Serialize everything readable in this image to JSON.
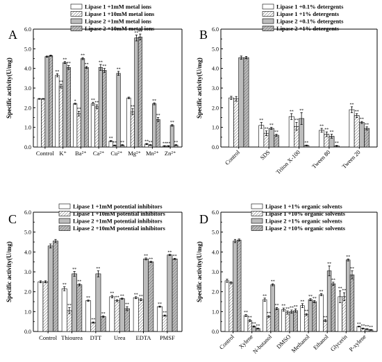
{
  "figure": {
    "panels": [
      "A",
      "B",
      "C",
      "D"
    ]
  },
  "chart_data": [
    {
      "panel": "A",
      "type": "bar",
      "ylabel": "Specific activity(U/mg)",
      "ylim": [
        0,
        6.0
      ],
      "yticks": [
        "0.0",
        "1.0",
        "2.0",
        "3.0",
        "4.0",
        "5.0",
        "6.0"
      ],
      "categories": [
        "Control",
        "K⁺",
        "Ba²⁺",
        "Ca²⁺",
        "Cu²⁺",
        "Mg²⁺",
        "Mn²⁺",
        "Zn²⁺"
      ],
      "legend_position": "top-right",
      "series": [
        {
          "name": "Lipase 1 +1mM metal ions",
          "style": "white",
          "values": [
            2.45,
            3.65,
            2.2,
            2.2,
            0.3,
            2.5,
            0.15,
            0.05
          ],
          "errors": [
            0.02,
            0.08,
            0.03,
            0.08,
            0.03,
            0.04,
            0.03,
            0.02
          ],
          "stars": [
            "",
            "**",
            "*",
            "**",
            "**",
            "",
            "**",
            "**"
          ]
        },
        {
          "name": "Lipase 1 +10mM metal ions",
          "style": "hatch",
          "values": [
            2.45,
            3.1,
            1.7,
            2.05,
            0.08,
            1.8,
            0.1,
            0.05
          ],
          "errors": [
            0.02,
            0.1,
            0.12,
            0.1,
            0.02,
            0.15,
            0.02,
            0.02
          ],
          "stars": [
            "",
            "**",
            "**",
            "**",
            "**",
            "**",
            "**",
            "**"
          ]
        },
        {
          "name": "Lipase 2 +1mM metal ions",
          "style": "gray",
          "values": [
            4.6,
            4.3,
            4.5,
            4.05,
            3.75,
            5.55,
            2.2,
            1.1
          ],
          "errors": [
            0.03,
            0.05,
            0.05,
            0.15,
            0.1,
            0.15,
            0.05,
            0.04
          ],
          "stars": [
            "",
            "**",
            "**",
            "**",
            "**",
            "**",
            "**",
            "**"
          ]
        },
        {
          "name": "Lipase 2 +10mM metal ions",
          "style": "grayhatch",
          "values": [
            4.65,
            4.05,
            4.05,
            3.9,
            0.1,
            5.6,
            1.4,
            0.1
          ],
          "errors": [
            0.03,
            0.1,
            0.05,
            0.1,
            0.02,
            0.15,
            0.1,
            0.02
          ],
          "stars": [
            "",
            "**",
            "**",
            "**",
            "**",
            "**",
            "**",
            "**"
          ]
        }
      ]
    },
    {
      "panel": "B",
      "type": "bar",
      "ylabel": "Specific activity(U/mg)",
      "ylim": [
        0,
        6.0
      ],
      "yticks": [
        "0.0",
        "1.0",
        "2.0",
        "3.0",
        "4.0",
        "5.0",
        "6.0"
      ],
      "categories": [
        "Control",
        "SDS",
        "Triton X-100",
        "Tween 80",
        "Tween 20"
      ],
      "legend_position": "top-right",
      "series": [
        {
          "name": "Lipase 1 +0.1% detergents",
          "style": "white",
          "values": [
            2.5,
            1.1,
            1.55,
            0.85,
            1.9
          ],
          "errors": [
            0.08,
            0.15,
            0.15,
            0.1,
            0.15
          ],
          "stars": [
            "",
            "**",
            "**",
            "**",
            "**"
          ]
        },
        {
          "name": "Lipase 1 +1% detergents",
          "style": "hatch",
          "values": [
            2.45,
            0.7,
            1.05,
            0.65,
            1.6
          ],
          "errors": [
            0.12,
            0.12,
            0.2,
            0.12,
            0.1
          ],
          "stars": [
            "",
            "**",
            "**",
            "**",
            "**"
          ]
        },
        {
          "name": "Lipase 2 +0.1% detergents",
          "style": "gray",
          "values": [
            4.55,
            0.95,
            1.45,
            0.55,
            1.25
          ],
          "errors": [
            0.08,
            0.05,
            0.3,
            0.1,
            0.05
          ],
          "stars": [
            "",
            "**",
            "**",
            "**",
            "**"
          ]
        },
        {
          "name": "Lipase 2 +1% detergents",
          "style": "grayhatch",
          "values": [
            4.55,
            0.6,
            0.08,
            0.06,
            0.95
          ],
          "errors": [
            0.06,
            0.05,
            0.02,
            0.02,
            0.08
          ],
          "stars": [
            "",
            "**",
            "**",
            "**",
            "**"
          ]
        }
      ]
    },
    {
      "panel": "C",
      "type": "bar",
      "ylabel": "Specific activity(U/mg)",
      "ylim": [
        0,
        6.0
      ],
      "yticks": [
        "0.0",
        "1.0",
        "2.0",
        "3.0",
        "4.0",
        "5.0",
        "6.0"
      ],
      "categories": [
        "Control",
        "Thiourea",
        "DTT",
        "Urea",
        "EDTA",
        "PMSF"
      ],
      "legend_position": "top-right",
      "series": [
        {
          "name": "Lipase 1 +1mM potential inhibitors",
          "style": "white",
          "values": [
            2.5,
            2.15,
            1.55,
            1.75,
            1.7,
            1.25
          ],
          "errors": [
            0.05,
            0.1,
            0.03,
            0.06,
            0.05,
            0.03
          ],
          "stars": [
            "",
            "**",
            "**",
            "**",
            "**",
            "**"
          ]
        },
        {
          "name": "Lipase 1 +10mM potential inhibitors",
          "style": "hatch",
          "values": [
            2.5,
            1.05,
            0.45,
            1.55,
            1.6,
            0.8
          ],
          "errors": [
            0.05,
            0.15,
            0.03,
            0.05,
            0.05,
            0.03
          ],
          "stars": [
            "",
            "**",
            "**",
            "**",
            "**",
            "**"
          ]
        },
        {
          "name": "Lipase 2 +1mM potential inhibitors",
          "style": "gray",
          "values": [
            4.3,
            2.9,
            2.9,
            1.65,
            3.65,
            3.85
          ],
          "errors": [
            0.1,
            0.12,
            0.15,
            0.03,
            0.05,
            0.03
          ],
          "stars": [
            "",
            "**",
            "**",
            "**",
            "**",
            "**"
          ]
        },
        {
          "name": "Lipase 2 +10mM potential inhibitors",
          "style": "grayhatch",
          "values": [
            4.55,
            2.35,
            0.75,
            1.15,
            3.5,
            3.65
          ],
          "errors": [
            0.08,
            0.05,
            0.03,
            0.1,
            0.03,
            0.03
          ],
          "stars": [
            "",
            "**",
            "**",
            "**",
            "**",
            "**"
          ]
        }
      ]
    },
    {
      "panel": "D",
      "type": "bar",
      "ylabel": "Specific activity(U/mg)",
      "ylim": [
        0,
        6.0
      ],
      "yticks": [
        "0.0",
        "1.0",
        "2.0",
        "3.0",
        "4.0",
        "5.0",
        "6.0"
      ],
      "categories": [
        "Control",
        "Xylene",
        "N-butanol",
        "DMSO",
        "Methanol",
        "Ethanol",
        "Glycerin",
        "P-xylene"
      ],
      "legend_position": "top-right",
      "series": [
        {
          "name": "Lipase 1 +1% organic solvents",
          "style": "white",
          "values": [
            2.55,
            0.8,
            1.6,
            1.1,
            1.3,
            1.85,
            1.75,
            0.25
          ],
          "errors": [
            0.08,
            0.05,
            0.08,
            0.08,
            0.1,
            0.05,
            0.3,
            0.02
          ],
          "stars": [
            "",
            "**",
            "**",
            "**",
            "**",
            "**",
            "**",
            "**"
          ]
        },
        {
          "name": "Lipase 1 +10% organic solvents",
          "style": "hatch",
          "values": [
            2.45,
            0.55,
            0.75,
            0.95,
            0.85,
            0.55,
            1.75,
            0.15
          ],
          "errors": [
            0.05,
            0.05,
            0.05,
            0.08,
            0.05,
            0.05,
            0.2,
            0.02
          ],
          "stars": [
            "",
            "**",
            "**",
            "**",
            "**",
            "**",
            "**",
            "**"
          ]
        },
        {
          "name": "Lipase 2 +1% organic solvents",
          "style": "gray",
          "values": [
            4.55,
            0.25,
            2.35,
            1.0,
            1.6,
            3.05,
            3.6,
            0.12
          ],
          "errors": [
            0.08,
            0.03,
            0.05,
            0.08,
            0.05,
            0.25,
            0.05,
            0.02
          ],
          "stars": [
            "",
            "**",
            "**",
            "**",
            "**",
            "**",
            "**",
            "**"
          ]
        },
        {
          "name": "Lipase 2 +10% organic solvents",
          "style": "grayhatch",
          "values": [
            4.6,
            0.15,
            1.15,
            1.05,
            1.5,
            2.4,
            2.85,
            0.08
          ],
          "errors": [
            0.05,
            0.02,
            0.05,
            0.08,
            0.05,
            0.08,
            0.2,
            0.02
          ],
          "stars": [
            "",
            "**",
            "**",
            "**",
            "**",
            "**",
            "**",
            "**"
          ]
        }
      ]
    }
  ]
}
